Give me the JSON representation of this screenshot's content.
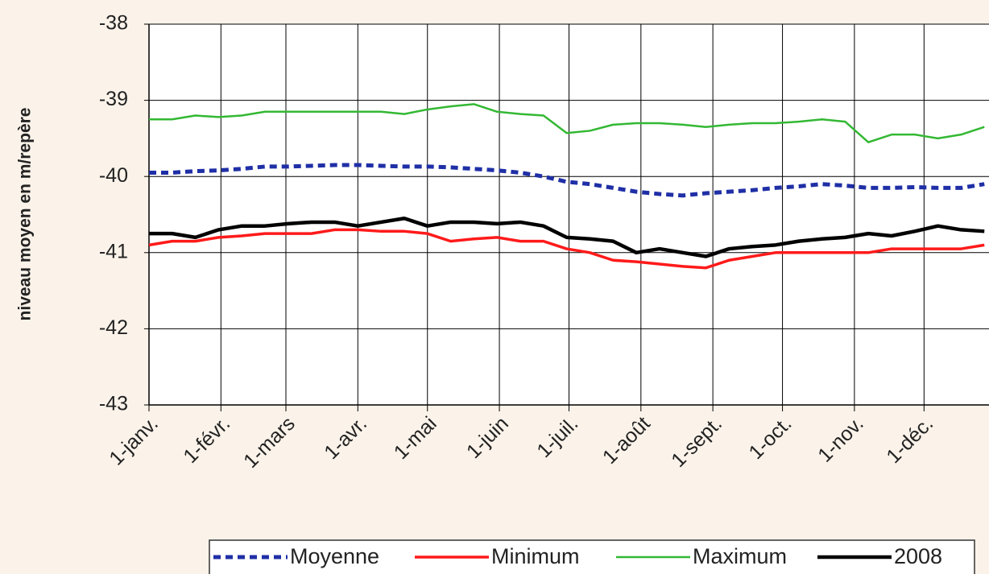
{
  "chart_data": {
    "type": "line",
    "y_label": "niveau moyen en m/repère",
    "x": [
      0,
      10,
      20,
      30,
      40,
      50,
      60,
      70,
      80,
      90,
      100,
      110,
      120,
      130,
      140,
      150,
      160,
      170,
      180,
      190,
      200,
      210,
      220,
      230,
      240,
      250,
      260,
      270,
      280,
      290,
      300,
      310,
      320,
      330,
      340,
      350,
      360
    ],
    "xlim": [
      0,
      362
    ],
    "xticks": [
      {
        "value": 0,
        "label": "1-janv."
      },
      {
        "value": 31,
        "label": "1-févr."
      },
      {
        "value": 59,
        "label": "1-mars"
      },
      {
        "value": 90,
        "label": "1-avr."
      },
      {
        "value": 120,
        "label": "1-mai"
      },
      {
        "value": 151,
        "label": "1-juin"
      },
      {
        "value": 181,
        "label": "1-juil."
      },
      {
        "value": 212,
        "label": "1-août"
      },
      {
        "value": 243,
        "label": "1-sept."
      },
      {
        "value": 273,
        "label": "1-oct."
      },
      {
        "value": 304,
        "label": "1-nov."
      },
      {
        "value": 334,
        "label": "1-déc."
      }
    ],
    "ylim": [
      -43,
      -38
    ],
    "yticks": [
      -43,
      -42,
      -41,
      -40,
      -39,
      -38
    ],
    "grid": true,
    "legend": "bottom",
    "series": [
      {
        "name": "Moyenne",
        "color": "#1f2fa6",
        "linestyle": "dashed",
        "values": [
          -39.95,
          -39.95,
          -39.93,
          -39.92,
          -39.9,
          -39.87,
          -39.87,
          -39.86,
          -39.85,
          -39.85,
          -39.86,
          -39.87,
          -39.87,
          -39.88,
          -39.9,
          -39.92,
          -39.95,
          -40.0,
          -40.07,
          -40.1,
          -40.15,
          -40.2,
          -40.23,
          -40.25,
          -40.22,
          -40.2,
          -40.18,
          -40.15,
          -40.13,
          -40.1,
          -40.12,
          -40.15,
          -40.15,
          -40.14,
          -40.15,
          -40.15,
          -40.1
        ]
      },
      {
        "name": "Minimum",
        "color": "#ff1a1a",
        "linestyle": "solid",
        "values": [
          -40.9,
          -40.85,
          -40.85,
          -40.8,
          -40.78,
          -40.75,
          -40.75,
          -40.75,
          -40.7,
          -40.7,
          -40.72,
          -40.72,
          -40.75,
          -40.85,
          -40.82,
          -40.8,
          -40.85,
          -40.85,
          -40.95,
          -41.0,
          -41.1,
          -41.12,
          -41.15,
          -41.18,
          -41.2,
          -41.1,
          -41.05,
          -41.0,
          -41.0,
          -41.0,
          -41.0,
          -41.0,
          -40.95,
          -40.95,
          -40.95,
          -40.95,
          -40.9
        ]
      },
      {
        "name": "Maximum",
        "color": "#33b833",
        "linestyle": "solid",
        "values": [
          -39.25,
          -39.25,
          -39.2,
          -39.22,
          -39.2,
          -39.15,
          -39.15,
          -39.15,
          -39.15,
          -39.15,
          -39.15,
          -39.18,
          -39.12,
          -39.08,
          -39.05,
          -39.15,
          -39.18,
          -39.2,
          -39.43,
          -39.4,
          -39.32,
          -39.3,
          -39.3,
          -39.32,
          -39.35,
          -39.32,
          -39.3,
          -39.3,
          -39.28,
          -39.25,
          -39.28,
          -39.55,
          -39.45,
          -39.45,
          -39.5,
          -39.45,
          -39.35
        ]
      },
      {
        "name": "2008",
        "color": "#000000",
        "linestyle": "solid",
        "values": [
          -40.75,
          -40.75,
          -40.8,
          -40.7,
          -40.65,
          -40.65,
          -40.62,
          -40.6,
          -40.6,
          -40.65,
          -40.6,
          -40.55,
          -40.65,
          -40.6,
          -40.6,
          -40.62,
          -40.6,
          -40.65,
          -40.8,
          -40.82,
          -40.85,
          -41.0,
          -40.95,
          -41.0,
          -41.05,
          -40.95,
          -40.92,
          -40.9,
          -40.85,
          -40.82,
          -40.8,
          -40.75,
          -40.78,
          -40.72,
          -40.65,
          -40.7,
          -40.72
        ]
      }
    ]
  }
}
